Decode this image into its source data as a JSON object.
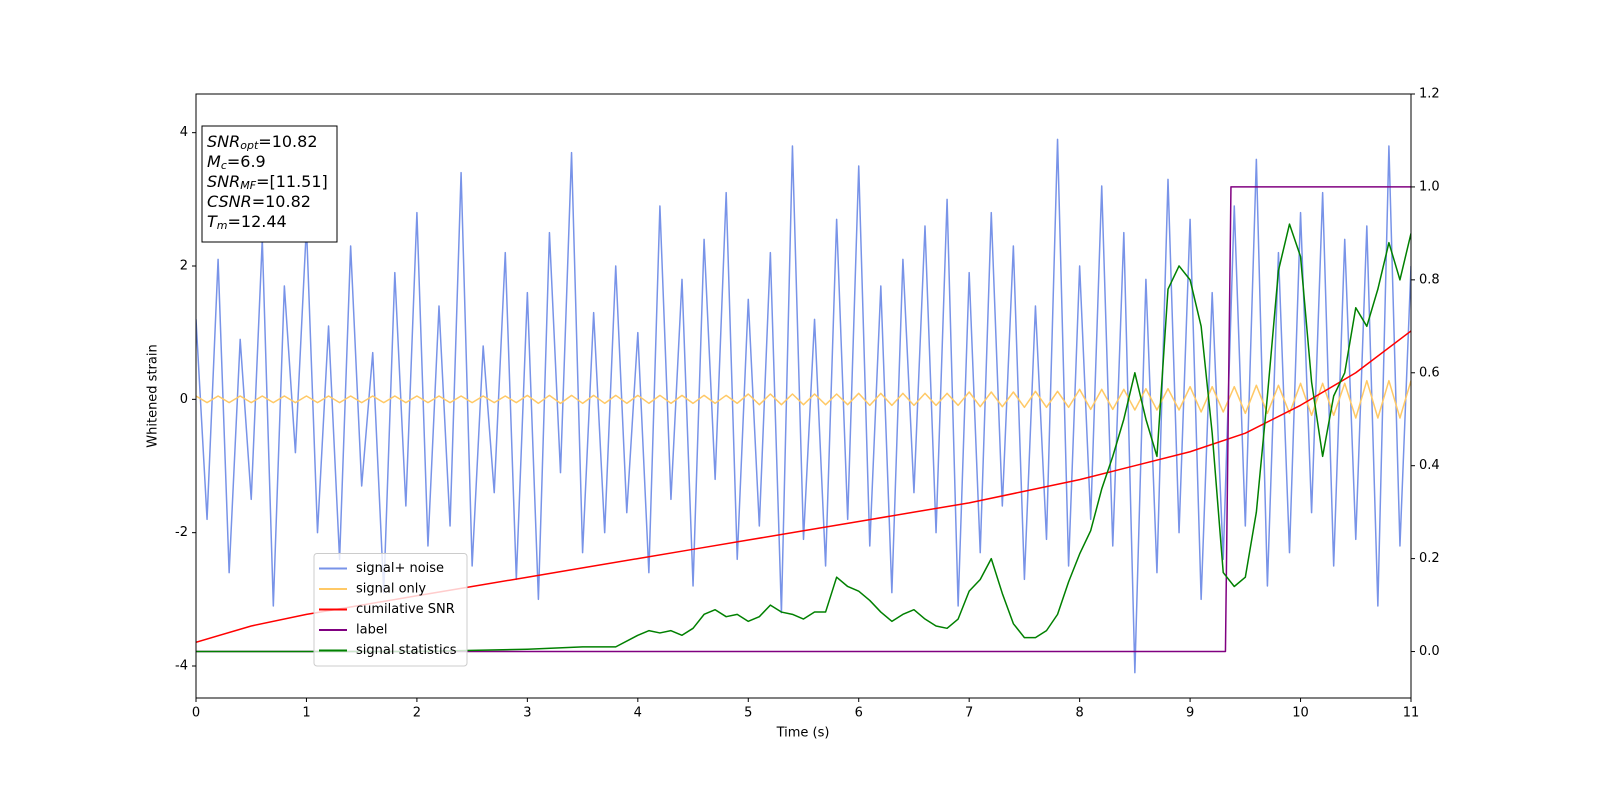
{
  "chart_data": {
    "type": "line",
    "xlabel": "Time (s)",
    "ylabel": "Whitened strain",
    "xlim": [
      0,
      11
    ],
    "ylim": [
      -4.48,
      4.58
    ],
    "y2lim": [
      -0.1,
      1.2
    ],
    "xticks": [
      0,
      1,
      2,
      3,
      4,
      5,
      6,
      7,
      8,
      9,
      10,
      11
    ],
    "yticks": [
      -4,
      -2,
      0,
      2,
      4
    ],
    "y2ticks": [
      {
        "value": 0,
        "label": "0.0"
      },
      {
        "value": 0.2,
        "label": "0.2"
      },
      {
        "value": 0.4,
        "label": "0.4"
      },
      {
        "value": 0.6,
        "label": "0.6"
      },
      {
        "value": 0.8,
        "label": "0.8"
      },
      {
        "value": 1,
        "label": "1.0"
      },
      {
        "value": 1.2,
        "label": "1.2"
      }
    ],
    "legend": "lower left",
    "annotations": [
      {
        "symbol": "SNR",
        "subscript": "opt",
        "text": "=10.82"
      },
      {
        "symbol": "M",
        "subscript": "c",
        "text": "=6.9"
      },
      {
        "symbol": "SNR",
        "subscript": "MF",
        "text": "=[11.51]"
      },
      {
        "symbol": "CSNR",
        "text": "=10.82"
      },
      {
        "symbol": "T",
        "subscript": "m",
        "text": "=12.44"
      }
    ],
    "x": [
      0,
      0.1,
      0.2,
      0.3,
      0.4,
      0.5,
      0.6,
      0.7,
      0.8,
      0.9,
      1,
      1.1,
      1.2,
      1.3,
      1.4,
      1.5,
      1.6,
      1.7,
      1.8,
      1.9,
      2,
      2.1,
      2.2,
      2.3,
      2.4,
      2.5,
      2.6,
      2.7,
      2.8,
      2.9,
      3,
      3.1,
      3.2,
      3.3,
      3.4,
      3.5,
      3.6,
      3.7,
      3.8,
      3.9,
      4,
      4.1,
      4.2,
      4.3,
      4.4,
      4.5,
      4.6,
      4.7,
      4.8,
      4.9,
      5,
      5.1,
      5.2,
      5.3,
      5.4,
      5.5,
      5.6,
      5.7,
      5.8,
      5.9,
      6,
      6.1,
      6.2,
      6.3,
      6.4,
      6.5,
      6.6,
      6.7,
      6.8,
      6.9,
      7,
      7.1,
      7.2,
      7.3,
      7.4,
      7.5,
      7.6,
      7.7,
      7.8,
      7.9,
      8,
      8.1,
      8.2,
      8.3,
      8.4,
      8.5,
      8.6,
      8.7,
      8.8,
      8.9,
      9,
      9.1,
      9.2,
      9.3,
      9.4,
      9.5,
      9.6,
      9.7,
      9.8,
      9.9,
      10,
      10.1,
      10.2,
      10.3,
      10.4,
      10.5,
      10.6,
      10.7,
      10.8,
      10.9,
      11
    ],
    "series": [
      {
        "name": "signal+ noise",
        "color": "#7893e8",
        "values": [
          1.2,
          -1.8,
          2.1,
          -2.6,
          0.9,
          -1.5,
          2.4,
          -3.1,
          1.7,
          -0.8,
          2.6,
          -2.0,
          1.1,
          -2.4,
          2.3,
          -1.3,
          0.7,
          -2.9,
          1.9,
          -1.6,
          2.8,
          -2.2,
          1.4,
          -1.9,
          3.4,
          -2.5,
          0.8,
          -1.4,
          2.2,
          -2.7,
          1.6,
          -3.0,
          2.5,
          -1.1,
          3.7,
          -2.3,
          1.3,
          -2.0,
          2.0,
          -1.7,
          1.0,
          -2.6,
          2.9,
          -1.5,
          1.8,
          -2.8,
          2.4,
          -1.2,
          3.1,
          -2.4,
          1.5,
          -1.9,
          2.2,
          -3.2,
          3.8,
          -2.1,
          1.2,
          -2.5,
          2.7,
          -1.8,
          3.5,
          -2.2,
          1.7,
          -2.9,
          2.1,
          -1.4,
          2.6,
          -2.0,
          3.0,
          -3.1,
          1.9,
          -2.3,
          2.8,
          -1.6,
          2.3,
          -2.7,
          1.4,
          -2.1,
          3.9,
          -2.5,
          2.0,
          -1.8,
          3.2,
          -2.2,
          2.5,
          -4.1,
          1.8,
          -2.6,
          3.3,
          -2.0,
          2.7,
          -3.0,
          1.6,
          -2.4,
          2.9,
          -1.9,
          3.6,
          -2.8,
          2.2,
          -2.3,
          2.8,
          -1.7,
          3.1,
          -2.5,
          2.4,
          -2.1,
          2.6,
          -3.1,
          3.8,
          -2.2,
          2.0
        ]
      },
      {
        "name": "signal only",
        "color": "#ffc966",
        "values": [
          0.05,
          -0.05,
          0.05,
          -0.05,
          0.05,
          -0.05,
          0.05,
          -0.05,
          0.05,
          -0.05,
          0.05,
          -0.05,
          0.05,
          -0.05,
          0.05,
          -0.05,
          0.05,
          -0.05,
          0.05,
          -0.05,
          0.05,
          -0.05,
          0.05,
          -0.05,
          0.05,
          -0.05,
          0.05,
          -0.05,
          0.05,
          -0.05,
          0.06,
          -0.06,
          0.06,
          -0.06,
          0.06,
          -0.06,
          0.06,
          -0.06,
          0.06,
          -0.06,
          0.06,
          -0.06,
          0.06,
          -0.06,
          0.06,
          -0.06,
          0.06,
          -0.06,
          0.06,
          -0.06,
          0.08,
          -0.08,
          0.08,
          -0.08,
          0.08,
          -0.08,
          0.08,
          -0.08,
          0.08,
          -0.08,
          0.09,
          -0.09,
          0.09,
          -0.09,
          0.09,
          -0.09,
          0.09,
          -0.09,
          0.09,
          -0.09,
          0.11,
          -0.11,
          0.11,
          -0.11,
          0.11,
          -0.12,
          0.12,
          -0.12,
          0.12,
          -0.12,
          0.15,
          -0.15,
          0.15,
          -0.15,
          0.15,
          -0.16,
          0.16,
          -0.16,
          0.16,
          -0.16,
          0.19,
          -0.19,
          0.19,
          -0.19,
          0.19,
          -0.21,
          0.21,
          -0.21,
          0.21,
          -0.21,
          0.24,
          -0.24,
          0.24,
          -0.24,
          0.24,
          -0.28,
          0.28,
          -0.28,
          0.28,
          -0.28,
          0.28
        ]
      },
      {
        "name": "cumilative SNR",
        "color": "#ff0000",
        "axis": "y2",
        "x": [
          0,
          0.5,
          1,
          1.5,
          2,
          2.5,
          3,
          3.5,
          4,
          4.5,
          5,
          5.5,
          6,
          6.5,
          7,
          7.5,
          8,
          8.5,
          9,
          9.5,
          10,
          10.5,
          11
        ],
        "values": [
          0.02,
          0.055,
          0.08,
          0.1,
          0.12,
          0.14,
          0.16,
          0.18,
          0.2,
          0.22,
          0.24,
          0.26,
          0.28,
          0.3,
          0.32,
          0.345,
          0.37,
          0.4,
          0.43,
          0.47,
          0.53,
          0.6,
          0.69
        ]
      },
      {
        "name": "label",
        "color": "#800080",
        "axis": "y2",
        "x": [
          0,
          9.32,
          9.37,
          11
        ],
        "values": [
          0,
          0,
          1,
          1
        ]
      },
      {
        "name": "signal statistics",
        "color": "#008000",
        "axis": "y2",
        "x": [
          0,
          1,
          2,
          3,
          3.5,
          3.8,
          4,
          4.1,
          4.2,
          4.3,
          4.4,
          4.5,
          4.6,
          4.7,
          4.8,
          4.9,
          5,
          5.1,
          5.2,
          5.3,
          5.4,
          5.5,
          5.6,
          5.7,
          5.8,
          5.9,
          6,
          6.1,
          6.2,
          6.3,
          6.4,
          6.5,
          6.6,
          6.7,
          6.8,
          6.9,
          7,
          7.1,
          7.2,
          7.3,
          7.4,
          7.5,
          7.6,
          7.7,
          7.8,
          7.9,
          8,
          8.1,
          8.2,
          8.3,
          8.4,
          8.5,
          8.6,
          8.7,
          8.8,
          8.9,
          9,
          9.1,
          9.2,
          9.3,
          9.4,
          9.5,
          9.6,
          9.7,
          9.8,
          9.9,
          10,
          10.1,
          10.2,
          10.3,
          10.4,
          10.5,
          10.6,
          10.7,
          10.8,
          10.9,
          11
        ],
        "values": [
          0,
          0,
          0,
          0.005,
          0.01,
          0.01,
          0.035,
          0.045,
          0.04,
          0.045,
          0.035,
          0.05,
          0.08,
          0.09,
          0.075,
          0.08,
          0.065,
          0.075,
          0.1,
          0.085,
          0.08,
          0.07,
          0.085,
          0.085,
          0.16,
          0.14,
          0.13,
          0.11,
          0.085,
          0.065,
          0.08,
          0.09,
          0.07,
          0.055,
          0.05,
          0.07,
          0.13,
          0.155,
          0.2,
          0.125,
          0.06,
          0.03,
          0.03,
          0.045,
          0.08,
          0.15,
          0.21,
          0.26,
          0.35,
          0.42,
          0.5,
          0.6,
          0.5,
          0.42,
          0.78,
          0.83,
          0.8,
          0.7,
          0.47,
          0.17,
          0.14,
          0.16,
          0.3,
          0.55,
          0.82,
          0.92,
          0.85,
          0.58,
          0.42,
          0.55,
          0.6,
          0.74,
          0.7,
          0.78,
          0.88,
          0.8,
          0.9
        ]
      }
    ]
  }
}
